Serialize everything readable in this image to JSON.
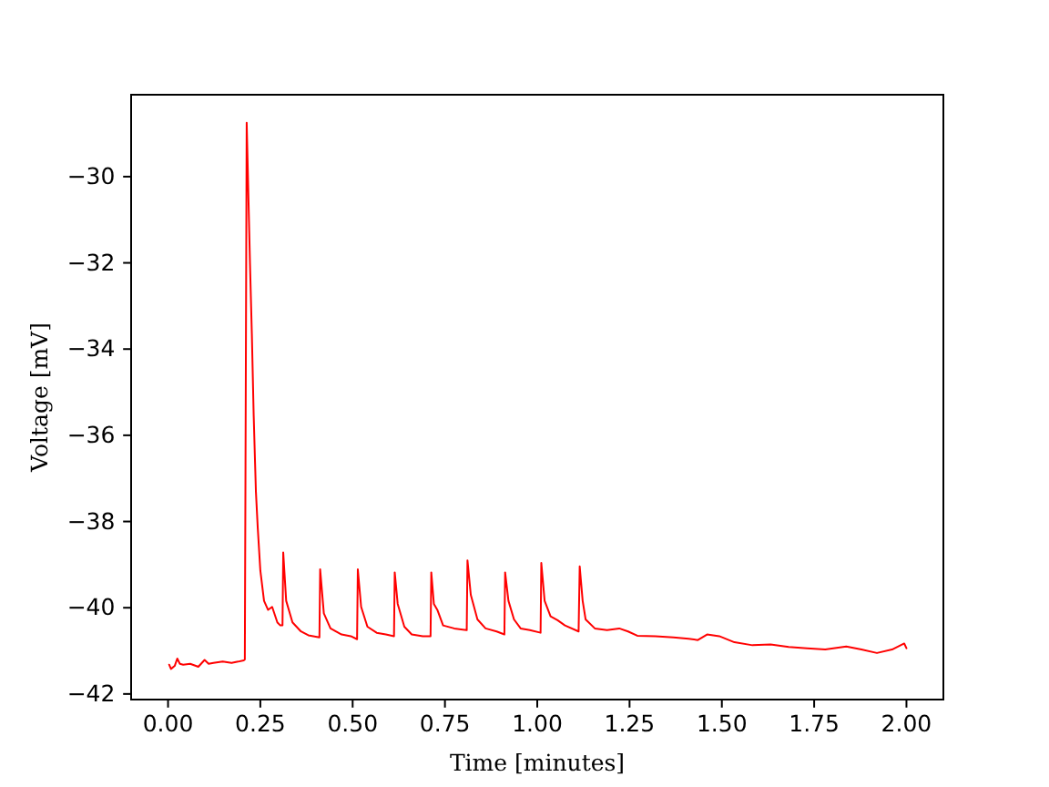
{
  "chart_data": {
    "type": "line",
    "xlabel": "Time [minutes]",
    "ylabel": "Voltage [mV]",
    "x": [
      0.003,
      0.008,
      0.018,
      0.025,
      0.032,
      0.041,
      0.06,
      0.082,
      0.099,
      0.11,
      0.123,
      0.148,
      0.172,
      0.19,
      0.205,
      0.208,
      0.213,
      0.222,
      0.227,
      0.232,
      0.238,
      0.243,
      0.25,
      0.26,
      0.271,
      0.282,
      0.296,
      0.304,
      0.31,
      0.312,
      0.32,
      0.337,
      0.36,
      0.38,
      0.41,
      0.412,
      0.422,
      0.44,
      0.47,
      0.495,
      0.512,
      0.514,
      0.523,
      0.54,
      0.565,
      0.59,
      0.612,
      0.614,
      0.622,
      0.64,
      0.66,
      0.69,
      0.711,
      0.713,
      0.72,
      0.73,
      0.745,
      0.775,
      0.809,
      0.811,
      0.82,
      0.838,
      0.86,
      0.89,
      0.911,
      0.913,
      0.922,
      0.937,
      0.955,
      0.98,
      1.009,
      1.011,
      1.02,
      1.036,
      1.055,
      1.075,
      1.112,
      1.115,
      1.123,
      1.131,
      1.156,
      1.189,
      1.222,
      1.246,
      1.271,
      1.32,
      1.369,
      1.41,
      1.435,
      1.46,
      1.493,
      1.534,
      1.583,
      1.632,
      1.681,
      1.731,
      1.78,
      1.837,
      1.878,
      1.92,
      1.961,
      1.994,
      2.0
    ],
    "series": [
      {
        "color": "#ff0000",
        "values": [
          -41.32,
          -41.42,
          -41.35,
          -41.18,
          -41.3,
          -41.32,
          -41.3,
          -41.37,
          -41.21,
          -41.3,
          -41.28,
          -41.25,
          -41.28,
          -41.25,
          -41.22,
          -41.2,
          -28.75,
          -32.03,
          -33.65,
          -35.55,
          -37.31,
          -38.15,
          -39.14,
          -39.84,
          -40.05,
          -39.98,
          -40.34,
          -40.41,
          -40.41,
          -38.72,
          -39.84,
          -40.34,
          -40.55,
          -40.64,
          -40.69,
          -39.11,
          -40.13,
          -40.48,
          -40.62,
          -40.66,
          -40.73,
          -39.11,
          -39.98,
          -40.44,
          -40.58,
          -40.62,
          -40.66,
          -39.18,
          -39.91,
          -40.44,
          -40.62,
          -40.66,
          -40.66,
          -39.18,
          -39.91,
          -40.06,
          -40.41,
          -40.48,
          -40.52,
          -38.9,
          -39.7,
          -40.27,
          -40.48,
          -40.55,
          -40.62,
          -39.18,
          -39.84,
          -40.27,
          -40.48,
          -40.52,
          -40.58,
          -38.96,
          -39.84,
          -40.2,
          -40.29,
          -40.41,
          -40.55,
          -39.04,
          -39.84,
          -40.27,
          -40.48,
          -40.52,
          -40.48,
          -40.55,
          -40.65,
          -40.66,
          -40.69,
          -40.72,
          -40.75,
          -40.62,
          -40.66,
          -40.8,
          -40.87,
          -40.85,
          -40.91,
          -40.94,
          -40.97,
          -40.9,
          -40.97,
          -41.05,
          -40.97,
          -40.83,
          -40.94
        ]
      }
    ],
    "xlim": [
      -0.1,
      2.1
    ],
    "ylim": [
      -42.13,
      -28.1
    ],
    "xticks": [
      {
        "value": 0,
        "label": "0.00"
      },
      {
        "value": 0.25,
        "label": "0.25"
      },
      {
        "value": 0.5,
        "label": "0.50"
      },
      {
        "value": 0.75,
        "label": "0.75"
      },
      {
        "value": 1,
        "label": "1.00"
      },
      {
        "value": 1.25,
        "label": "1.25"
      },
      {
        "value": 1.5,
        "label": "1.50"
      },
      {
        "value": 1.75,
        "label": "1.75"
      },
      {
        "value": 2,
        "label": "2.00"
      }
    ],
    "yticks": [
      {
        "value": -42,
        "label": "−42"
      },
      {
        "value": -40,
        "label": "−40"
      },
      {
        "value": -38,
        "label": "−38"
      },
      {
        "value": -36,
        "label": "−36"
      },
      {
        "value": -34,
        "label": "−34"
      },
      {
        "value": -32,
        "label": "−32"
      },
      {
        "value": -30,
        "label": "−30"
      }
    ]
  }
}
